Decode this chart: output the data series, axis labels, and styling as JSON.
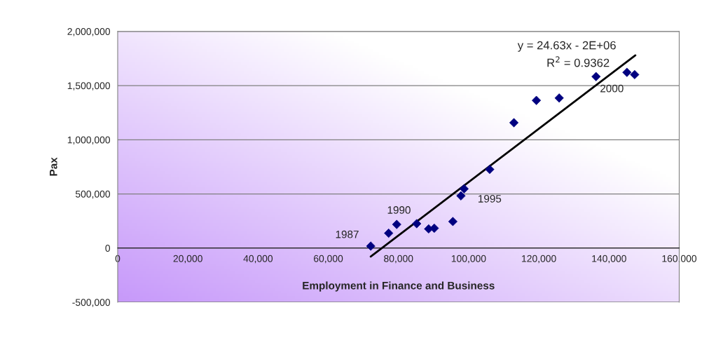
{
  "chart_data": {
    "type": "scatter",
    "xlabel": "Employment in Finance and Business",
    "ylabel": "Pax",
    "xlim": [
      0,
      160000
    ],
    "xticks": [
      {
        "value": 0,
        "label": "0"
      },
      {
        "value": 20000,
        "label": "20,000"
      },
      {
        "value": 40000,
        "label": "40,000"
      },
      {
        "value": 60000,
        "label": "60,000"
      },
      {
        "value": 80000,
        "label": "80,000"
      },
      {
        "value": 100000,
        "label": "100,000"
      },
      {
        "value": 120000,
        "label": "120,000"
      },
      {
        "value": 140000,
        "label": "140,000"
      },
      {
        "value": 160000,
        "label": "160,000"
      }
    ],
    "ylim": [
      -500000,
      2000000
    ],
    "yticks": [
      {
        "value": -500000,
        "label": "-500,000"
      },
      {
        "value": 0,
        "label": "0"
      },
      {
        "value": 500000,
        "label": "500,000"
      },
      {
        "value": 1000000,
        "label": "1,000,000"
      },
      {
        "value": 1500000,
        "label": "1,500,000"
      },
      {
        "value": 2000000,
        "label": "2,000,000"
      }
    ],
    "grid": "y",
    "marker": "diamond",
    "series": [
      {
        "color": "#000080",
        "x": [
          72100,
          77200,
          79500,
          85200,
          88600,
          90200,
          95500,
          97800,
          98700,
          106000,
          112900,
          119300,
          125800,
          136300,
          145100,
          147300
        ],
        "values": [
          18000,
          137000,
          218000,
          225000,
          177000,
          183000,
          245000,
          482000,
          547000,
          726000,
          1157000,
          1363000,
          1385000,
          1583000,
          1622000,
          1601000
        ]
      },
      {
        "type": "line",
        "marker": "none",
        "color": "#000000",
        "x": [
          72100,
          147500
        ],
        "values": [
          -78000,
          1779000
        ]
      }
    ],
    "annotations": [
      {
        "text": "1987",
        "x": 72100,
        "y": 18000
      },
      {
        "text": "1990",
        "x": 85200,
        "y": 225000
      },
      {
        "text": "1995",
        "x": 98700,
        "y": 547000
      },
      {
        "text": "2000",
        "x": 136300,
        "y": 1583000
      },
      "y = 24.63x - 2E+06",
      "R$^{2}$ = 0.9362"
    ]
  }
}
